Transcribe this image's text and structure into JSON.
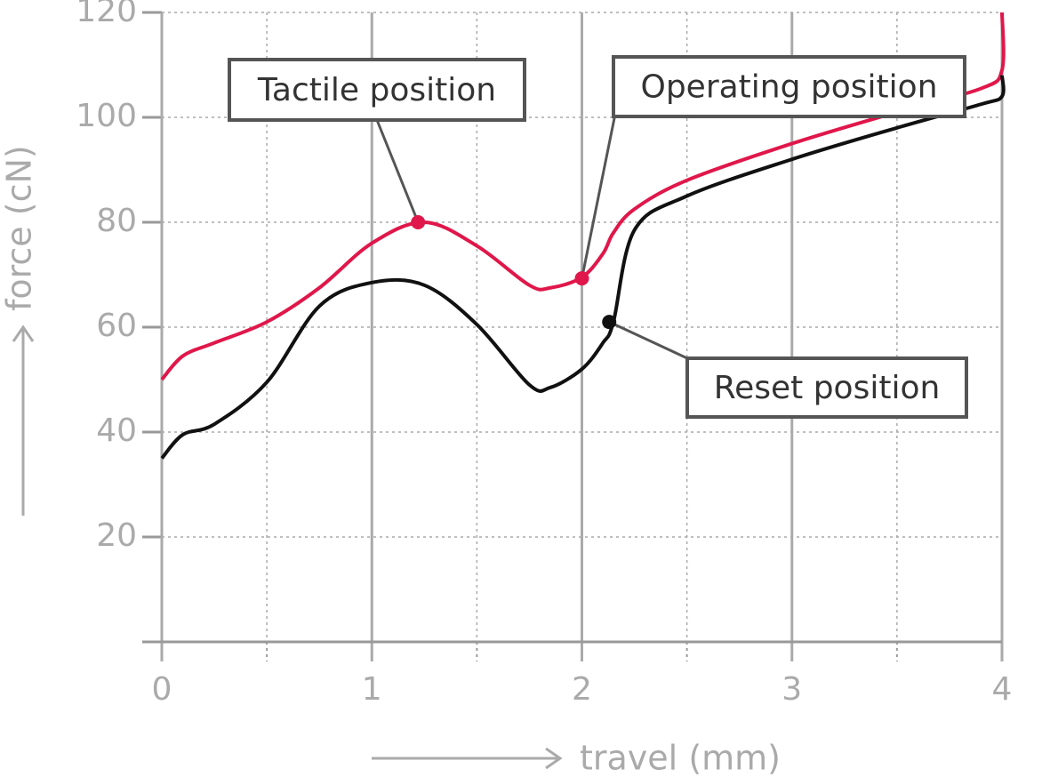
{
  "chart_data": {
    "type": "line",
    "x_label": "travel (mm)",
    "y_label": "force (cN)",
    "x": [
      0,
      0.1,
      0.25,
      0.5,
      0.75,
      1,
      1.25,
      1.5,
      1.75,
      1.85,
      2,
      2.1,
      2.15,
      2.25,
      2.5,
      3,
      3.5,
      3.9,
      4,
      4
    ],
    "series": [
      {
        "color": "#e0174a",
        "values": [
          50,
          54.5,
          57,
          61,
          67.5,
          76,
          80,
          75.5,
          68,
          67.5,
          69.5,
          74,
          78,
          82.5,
          88,
          95,
          101,
          105.5,
          109,
          120
        ]
      },
      {
        "color": "#111111",
        "values": [
          35,
          39.5,
          41.5,
          49.5,
          64,
          68.5,
          68,
          60.5,
          49,
          48.5,
          52,
          57,
          61,
          78.5,
          85,
          92,
          98,
          102.5,
          104,
          108
        ]
      }
    ],
    "xlim": [
      0,
      4
    ],
    "xticks": [
      0,
      1,
      2,
      3,
      4
    ],
    "xminorticks": [
      0.5,
      1.5,
      2.5,
      3.5
    ],
    "ylim": [
      0,
      120
    ],
    "yticks": [
      20,
      40,
      60,
      80,
      100,
      120
    ],
    "grid": true,
    "annotations": [
      {
        "text": "Tactile position",
        "x": 1.22,
        "y": 80,
        "color": "#e0174a"
      },
      {
        "text": "Operating position",
        "x": 2.0,
        "y": 69.3,
        "color": "#e0174a"
      },
      {
        "text": "Reset position",
        "x": 2.13,
        "y": 61,
        "color": "#111111"
      }
    ]
  }
}
